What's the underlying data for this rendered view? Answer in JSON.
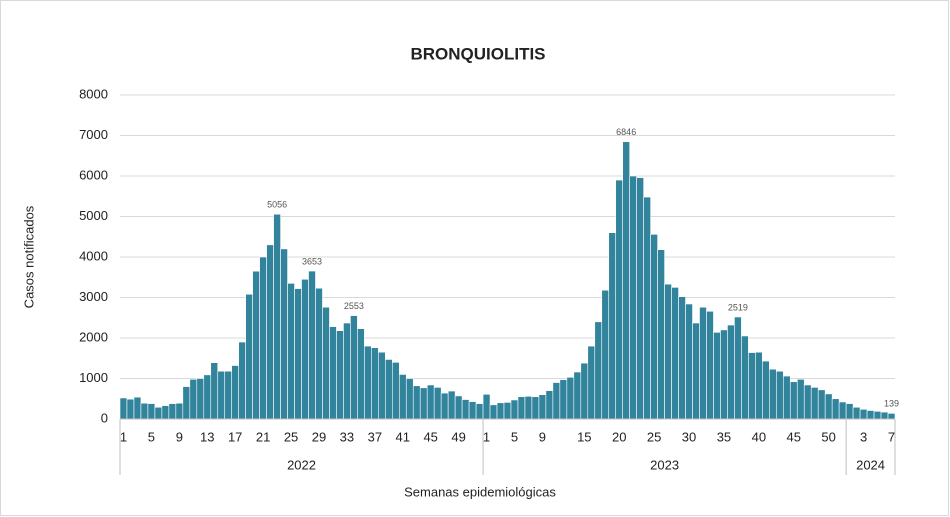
{
  "chart_data": {
    "type": "bar",
    "title": "BRONQUIOLITIS",
    "y_label": "Casos notificados",
    "x_label": "Semanas epidemiológicas",
    "color": "#31849b",
    "ylim": [
      0,
      8000
    ],
    "yticks": [
      0,
      1000,
      2000,
      3000,
      4000,
      5000,
      6000,
      7000,
      8000
    ],
    "grid": true,
    "groups": [
      {
        "name": "2022",
        "categories": [
          "1",
          null,
          null,
          null,
          "5",
          null,
          null,
          null,
          "9",
          null,
          null,
          null,
          "13",
          null,
          null,
          null,
          "17",
          null,
          null,
          null,
          "21",
          null,
          null,
          null,
          "25",
          null,
          null,
          null,
          "29",
          null,
          null,
          null,
          "33",
          null,
          null,
          null,
          "37",
          null,
          null,
          null,
          "41",
          null,
          null,
          null,
          "45",
          null,
          null,
          null,
          "49",
          null,
          null,
          null
        ],
        "values": [
          520,
          490,
          540,
          390,
          380,
          290,
          330,
          380,
          390,
          800,
          980,
          1000,
          1090,
          1390,
          1180,
          1180,
          1320,
          1900,
          3080,
          3650,
          4000,
          4300,
          5056,
          4200,
          3350,
          3220,
          3450,
          3653,
          3230,
          2760,
          2280,
          2180,
          2370,
          2553,
          2230,
          1800,
          1760,
          1650,
          1470,
          1400,
          1100,
          1000,
          820,
          770,
          840,
          780,
          640,
          690,
          570,
          480,
          430,
          380
        ],
        "value_labels": [
          null,
          null,
          null,
          null,
          null,
          null,
          null,
          null,
          null,
          null,
          null,
          null,
          null,
          null,
          null,
          null,
          null,
          null,
          null,
          null,
          null,
          null,
          "5056",
          null,
          null,
          null,
          null,
          "3653",
          null,
          null,
          null,
          null,
          null,
          "2553",
          null,
          null,
          null,
          null,
          null,
          null,
          null,
          null,
          null,
          null,
          null,
          null,
          null,
          null,
          null,
          null,
          null,
          null
        ]
      },
      {
        "name": "2023",
        "categories": [
          "1",
          null,
          null,
          null,
          "5",
          null,
          null,
          null,
          "9",
          null,
          null,
          null,
          null,
          null,
          "15",
          null,
          null,
          null,
          null,
          "20",
          null,
          null,
          null,
          null,
          "25",
          null,
          null,
          null,
          null,
          "30",
          null,
          null,
          null,
          null,
          "35",
          null,
          null,
          null,
          null,
          "40",
          null,
          null,
          null,
          null,
          "45",
          null,
          null,
          null,
          null,
          "50",
          null,
          null
        ],
        "values": [
          610,
          350,
          400,
          410,
          470,
          550,
          560,
          550,
          600,
          700,
          900,
          970,
          1030,
          1160,
          1380,
          1800,
          2400,
          3180,
          4600,
          5900,
          6846,
          6000,
          5960,
          5480,
          4560,
          4180,
          3330,
          3250,
          3020,
          2840,
          2370,
          2760,
          2660,
          2140,
          2200,
          2320,
          2519,
          2050,
          1640,
          1650,
          1430,
          1230,
          1180,
          1060,
          920,
          980,
          840,
          780,
          720,
          620,
          500,
          420
        ],
        "value_labels": [
          null,
          null,
          null,
          null,
          null,
          null,
          null,
          null,
          null,
          null,
          null,
          null,
          null,
          null,
          null,
          null,
          null,
          null,
          null,
          null,
          "6846",
          null,
          null,
          null,
          null,
          null,
          null,
          null,
          null,
          null,
          null,
          null,
          null,
          null,
          null,
          null,
          "2519",
          null,
          null,
          null,
          null,
          null,
          null,
          null,
          null,
          null,
          null,
          null,
          null,
          null,
          null,
          null
        ]
      },
      {
        "name": "2024",
        "categories": [
          null,
          null,
          "3",
          null,
          null,
          null,
          "7"
        ],
        "values": [
          380,
          290,
          240,
          210,
          190,
          170,
          139
        ],
        "value_labels": [
          null,
          null,
          null,
          null,
          null,
          null,
          "139"
        ]
      }
    ]
  }
}
